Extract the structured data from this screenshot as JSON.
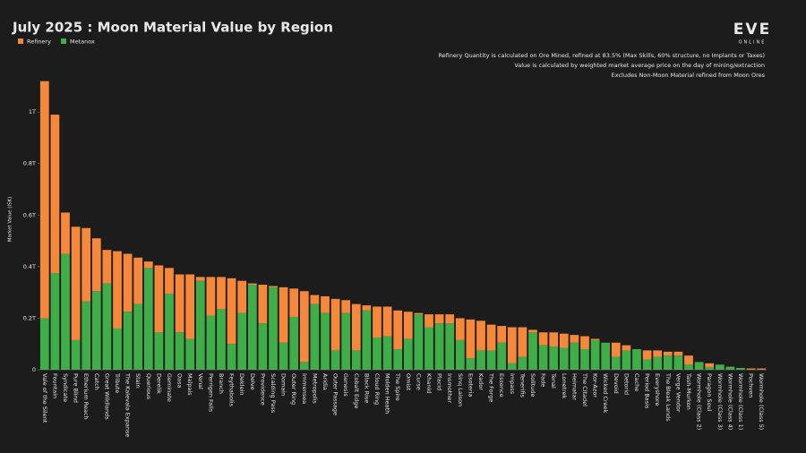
{
  "chart_data": {
    "type": "stacked-bar",
    "title": "July 2025 : Moon Material Value by Region",
    "logo": {
      "main": "EVE",
      "sub": "ONLINE"
    },
    "notes": [
      "Refinery Quantity is calculated on Ore Mined, refined at 83.5% (Max Skills, 60% structure, no Implants or Taxes)",
      "Value is calculated by weighted market average price on the day of mining/extraction",
      "Excludes Non-Moon Material refined from Moon Ores"
    ],
    "y_label": "Market Value (ISK)",
    "legend_position": "top-left",
    "categories": [
      "Vale of the Silent",
      "Fountain",
      "Syndicate",
      "Pure Blind",
      "Etherium Reach",
      "Catch",
      "Great Wildlands",
      "Tribute",
      "The Kalevala Expanse",
      "Stain",
      "Querious",
      "Derelik",
      "Geminate",
      "Oasa",
      "Malpais",
      "Venal",
      "Perrigen Falls",
      "Branch",
      "Feythabolis",
      "Deklein",
      "Delve",
      "Providence",
      "Scalding Pass",
      "Domain",
      "Outer Ring",
      "Immensea",
      "Metropolis",
      "Aridia",
      "Outer Passage",
      "Genesis",
      "Cobalt Edge",
      "Black Rise",
      "Cloud Ring",
      "Molden Heath",
      "The Spire",
      "Omist",
      "Curse",
      "Khanid",
      "Placid",
      "Insmother",
      "Sinq Laison",
      "Esoteria",
      "Kador",
      "The Forge",
      "Essence",
      "Impass",
      "Tenerifis",
      "Solitude",
      "Fade",
      "Tenal",
      "Lonetrek",
      "Heimatar",
      "The Citadel",
      "Kor-Azor",
      "Wicked Creek",
      "Devoid",
      "Detorid",
      "Cache",
      "Period Basis",
      "Everyshore",
      "The Bleak Lands",
      "Verge Vendor",
      "Tash-Murkon",
      "Wormhole (Class 2)",
      "Paragon Soul",
      "Wormhole (Class 3)",
      "Wormhole (Class 4)",
      "Wormhole (Class 1)",
      "Pochven",
      "Wormhole (Class 5)"
    ],
    "series": [
      {
        "name": "Refinery",
        "color": "#f5883a",
        "values": [
          0.92,
          0.615,
          0.16,
          0.44,
          0.285,
          0.205,
          0.13,
          0.3,
          0.225,
          0.18,
          0.025,
          0.26,
          0.1,
          0.225,
          0.25,
          0.015,
          0.15,
          0.125,
          0.255,
          0.125,
          0.005,
          0.15,
          0.005,
          0.215,
          0.11,
          0.275,
          0.035,
          0.065,
          0.2,
          0.05,
          0.18,
          0.02,
          0.12,
          0.115,
          0.15,
          0.105,
          0.005,
          0.05,
          0.035,
          0.035,
          0.085,
          0.15,
          0.115,
          0.1,
          0.065,
          0.14,
          0.115,
          0.01,
          0.05,
          0.055,
          0.055,
          0.03,
          0.05,
          0.005,
          0,
          0.055,
          0.02,
          0,
          0.035,
          0.025,
          0.015,
          0.015,
          0.035,
          0,
          0.015,
          0,
          0,
          0,
          0.005,
          0.005
        ]
      },
      {
        "name": "Metanox",
        "color": "#3fae49",
        "values": [
          0.2,
          0.375,
          0.45,
          0.115,
          0.265,
          0.305,
          0.335,
          0.16,
          0.225,
          0.255,
          0.395,
          0.145,
          0.295,
          0.145,
          0.12,
          0.345,
          0.21,
          0.235,
          0.1,
          0.22,
          0.33,
          0.18,
          0.32,
          0.105,
          0.205,
          0.03,
          0.255,
          0.22,
          0.075,
          0.22,
          0.075,
          0.23,
          0.125,
          0.13,
          0.08,
          0.12,
          0.215,
          0.165,
          0.18,
          0.18,
          0.115,
          0.045,
          0.075,
          0.075,
          0.105,
          0.025,
          0.05,
          0.145,
          0.095,
          0.09,
          0.085,
          0.105,
          0.08,
          0.115,
          0.105,
          0.05,
          0.075,
          0.08,
          0.04,
          0.05,
          0.055,
          0.055,
          0.02,
          0.03,
          0.01,
          0.02,
          0.012,
          0.007,
          0,
          0
        ]
      }
    ],
    "stack_order": [
      1,
      0
    ],
    "ylim": [
      0,
      1.15
    ],
    "yticks": [
      0,
      {
        "value": 0.2,
        "label": "0.2T"
      },
      {
        "value": 0.4,
        "label": "0.4T"
      },
      {
        "value": 0.6,
        "label": "0.6T"
      },
      {
        "value": 0.8,
        "label": "0.8T"
      },
      {
        "value": 1,
        "label": "1T"
      }
    ]
  }
}
